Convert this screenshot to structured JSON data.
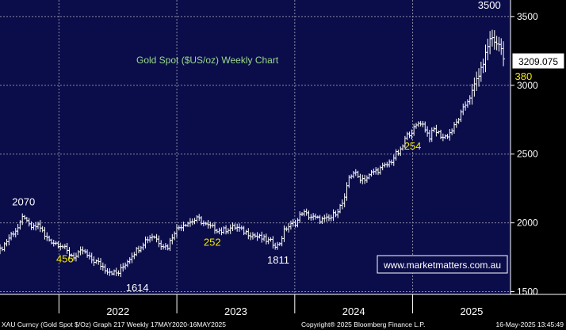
{
  "chart_data": {
    "type": "ohlc",
    "title": "Gold Spot ($US/oz) Weekly Chart",
    "ylim": [
      1480,
      3620
    ],
    "y_ticks": [
      1500,
      2000,
      2500,
      3000,
      3500
    ],
    "x_labels": [
      "2022",
      "2023",
      "2024",
      "2025"
    ],
    "x_label_positions": [
      1.0,
      2.0,
      3.0,
      4.0
    ],
    "last_price": "3209.075",
    "series": [
      {
        "t": 0.0,
        "c": 1800
      },
      {
        "t": 0.05,
        "c": 1860
      },
      {
        "t": 0.1,
        "c": 1920
      },
      {
        "t": 0.15,
        "c": 1960
      },
      {
        "t": 0.18,
        "c": 2000
      },
      {
        "t": 0.2,
        "c": 2070
      },
      {
        "t": 0.23,
        "c": 1990
      },
      {
        "t": 0.28,
        "c": 1960
      },
      {
        "t": 0.33,
        "c": 1990
      },
      {
        "t": 0.38,
        "c": 1900
      },
      {
        "t": 0.45,
        "c": 1860
      },
      {
        "t": 0.52,
        "c": 1840
      },
      {
        "t": 0.58,
        "c": 1780
      },
      {
        "t": 0.64,
        "c": 1750
      },
      {
        "t": 0.7,
        "c": 1800
      },
      {
        "t": 0.76,
        "c": 1740
      },
      {
        "t": 0.83,
        "c": 1710
      },
      {
        "t": 0.9,
        "c": 1660
      },
      {
        "t": 0.96,
        "c": 1640
      },
      {
        "t": 1.0,
        "c": 1630
      },
      {
        "t": 1.06,
        "c": 1700
      },
      {
        "t": 1.12,
        "c": 1770
      },
      {
        "t": 1.18,
        "c": 1820
      },
      {
        "t": 1.24,
        "c": 1880
      },
      {
        "t": 1.3,
        "c": 1910
      },
      {
        "t": 1.36,
        "c": 1850
      },
      {
        "t": 1.42,
        "c": 1820
      },
      {
        "t": 1.48,
        "c": 1940
      },
      {
        "t": 1.55,
        "c": 1990
      },
      {
        "t": 1.62,
        "c": 2010
      },
      {
        "t": 1.68,
        "c": 2030
      },
      {
        "t": 1.75,
        "c": 1980
      },
      {
        "t": 1.82,
        "c": 1960
      },
      {
        "t": 1.88,
        "c": 1940
      },
      {
        "t": 1.94,
        "c": 1960
      },
      {
        "t": 2.0,
        "c": 1970
      },
      {
        "t": 2.06,
        "c": 1940
      },
      {
        "t": 2.12,
        "c": 1920
      },
      {
        "t": 2.18,
        "c": 1900
      },
      {
        "t": 2.24,
        "c": 1880
      },
      {
        "t": 2.3,
        "c": 1860
      },
      {
        "t": 2.36,
        "c": 1830
      },
      {
        "t": 2.42,
        "c": 1960
      },
      {
        "t": 2.48,
        "c": 1990
      },
      {
        "t": 2.52,
        "c": 2010
      },
      {
        "t": 2.56,
        "c": 2080
      },
      {
        "t": 2.62,
        "c": 2050
      },
      {
        "t": 2.68,
        "c": 2030
      },
      {
        "t": 2.74,
        "c": 2020
      },
      {
        "t": 2.8,
        "c": 2030
      },
      {
        "t": 2.86,
        "c": 2090
      },
      {
        "t": 2.92,
        "c": 2160
      },
      {
        "t": 2.96,
        "c": 2330
      },
      {
        "t": 3.0,
        "c": 2370
      },
      {
        "t": 3.04,
        "c": 2330
      },
      {
        "t": 3.08,
        "c": 2320
      },
      {
        "t": 3.12,
        "c": 2330
      },
      {
        "t": 3.16,
        "c": 2370
      },
      {
        "t": 3.2,
        "c": 2380
      },
      {
        "t": 3.24,
        "c": 2400
      },
      {
        "t": 3.28,
        "c": 2420
      },
      {
        "t": 3.32,
        "c": 2450
      },
      {
        "t": 3.36,
        "c": 2500
      },
      {
        "t": 3.4,
        "c": 2520
      },
      {
        "t": 3.44,
        "c": 2620
      },
      {
        "t": 3.48,
        "c": 2660
      },
      {
        "t": 3.52,
        "c": 2690
      },
      {
        "t": 3.56,
        "c": 2740
      },
      {
        "t": 3.6,
        "c": 2700
      },
      {
        "t": 3.64,
        "c": 2620
      },
      {
        "t": 3.68,
        "c": 2680
      },
      {
        "t": 3.72,
        "c": 2650
      },
      {
        "t": 3.76,
        "c": 2620
      },
      {
        "t": 3.8,
        "c": 2640
      },
      {
        "t": 3.84,
        "c": 2680
      },
      {
        "t": 3.88,
        "c": 2740
      },
      {
        "t": 3.92,
        "c": 2810
      },
      {
        "t": 3.96,
        "c": 2880
      },
      {
        "t": 4.0,
        "c": 2940
      },
      {
        "t": 4.04,
        "c": 3040
      },
      {
        "t": 4.08,
        "c": 3110
      },
      {
        "t": 4.12,
        "c": 3230
      },
      {
        "t": 4.15,
        "c": 3330
      },
      {
        "t": 4.18,
        "c": 3350
      },
      {
        "t": 4.21,
        "c": 3290
      },
      {
        "t": 4.24,
        "c": 3300
      },
      {
        "t": 4.27,
        "c": 3209
      }
    ],
    "annotations": [
      {
        "text": "2070",
        "t": 0.2,
        "v": 2070,
        "color": "#ffffff",
        "dx": 0,
        "dy": -1
      },
      {
        "text": "456",
        "t": 0.55,
        "v": 1840,
        "color": "#f2e600",
        "dx": 0,
        "dy": 1
      },
      {
        "text": "1614",
        "t": 1.0,
        "v": 1630,
        "color": "#ffffff",
        "dx": 1,
        "dy": 1
      },
      {
        "text": "252",
        "t": 1.8,
        "v": 1960,
        "color": "#f2e600",
        "dx": 0,
        "dy": 1
      },
      {
        "text": "1811",
        "t": 2.36,
        "v": 1830,
        "color": "#ffffff",
        "dx": 0,
        "dy": 1
      },
      {
        "text": "254",
        "t": 3.5,
        "v": 2660,
        "color": "#f2e600",
        "dx": 0,
        "dy": 1
      },
      {
        "text": "3500",
        "t": 4.15,
        "v": 3500,
        "color": "#ffffff",
        "dx": 0,
        "dy": -1
      },
      {
        "text": "380",
        "t": 4.3,
        "v": 3040,
        "color": "#f2e600",
        "dx": 1,
        "dy": 0
      }
    ]
  },
  "watermark": "www.marketmatters.com.au",
  "footer": {
    "left": "XAU Curncy (Gold Spot  $/Oz) Graph 217  Weekly 17MAY2020-16MAY2025",
    "center": "Copyright® 2025 Bloomberg Finance L.P.",
    "right": "16-May-2025 13:45:49"
  },
  "colors": {
    "plot_bg": "#0b0d4a",
    "price": "#ffffff",
    "grid": "#8a8aa0",
    "title": "#99d98a",
    "accent": "#f2e600"
  }
}
